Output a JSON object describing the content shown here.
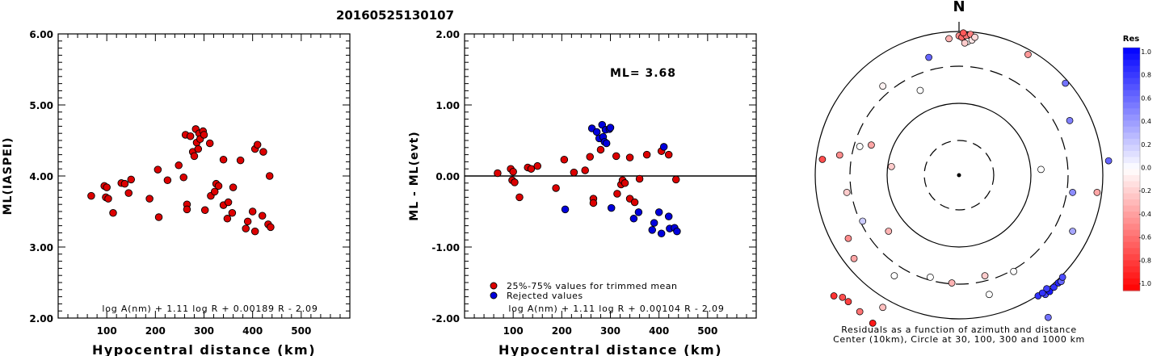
{
  "page_title": "20160525130107",
  "chart_data": [
    {
      "type": "scatter",
      "ylabel": "ML(IASPEI)",
      "xlabel": "Hypocentral distance (km)",
      "xlim": [
        0,
        600
      ],
      "ylim": [
        2.0,
        6.0
      ],
      "x_ticks": [
        "100",
        "200",
        "300",
        "400",
        "500"
      ],
      "y_ticks": [
        "2.00",
        "3.00",
        "4.00",
        "5.00",
        "6.00"
      ],
      "formula": "log A(nm) + 1.11 log R + 0.00189 R - 2.09",
      "series": [
        {
          "color": "#dd0000",
          "points": [
            [
              68,
              3.72
            ],
            [
              95,
              3.86
            ],
            [
              100,
              3.84
            ],
            [
              98,
              3.7
            ],
            [
              103,
              3.68
            ],
            [
              113,
              3.48
            ],
            [
              130,
              3.9
            ],
            [
              137,
              3.89
            ],
            [
              145,
              3.76
            ],
            [
              150,
              3.95
            ],
            [
              188,
              3.68
            ],
            [
              205,
              4.09
            ],
            [
              207,
              3.42
            ],
            [
              225,
              3.94
            ],
            [
              248,
              4.15
            ],
            [
              258,
              3.98
            ],
            [
              262,
              4.58
            ],
            [
              265,
              3.6
            ],
            [
              265,
              3.53
            ],
            [
              272,
              4.56
            ],
            [
              277,
              4.34
            ],
            [
              280,
              4.28
            ],
            [
              283,
              4.66
            ],
            [
              285,
              4.47
            ],
            [
              288,
              4.38
            ],
            [
              290,
              4.6
            ],
            [
              292,
              4.52
            ],
            [
              298,
              4.63
            ],
            [
              300,
              4.58
            ],
            [
              302,
              3.52
            ],
            [
              312,
              4.46
            ],
            [
              314,
              3.72
            ],
            [
              322,
              3.78
            ],
            [
              325,
              3.89
            ],
            [
              330,
              3.86
            ],
            [
              340,
              3.59
            ],
            [
              340,
              4.23
            ],
            [
              348,
              3.4
            ],
            [
              350,
              3.63
            ],
            [
              358,
              3.48
            ],
            [
              360,
              3.84
            ],
            [
              375,
              4.22
            ],
            [
              386,
              3.26
            ],
            [
              390,
              3.36
            ],
            [
              400,
              3.5
            ],
            [
              405,
              4.38
            ],
            [
              405,
              3.22
            ],
            [
              410,
              4.44
            ],
            [
              420,
              3.44
            ],
            [
              422,
              4.34
            ],
            [
              432,
              3.32
            ],
            [
              435,
              4.0
            ],
            [
              437,
              3.28
            ]
          ]
        }
      ]
    },
    {
      "type": "scatter",
      "ylabel": "ML - ML(evt)",
      "xlabel": "Hypocentral distance (km)",
      "xlim": [
        0,
        600
      ],
      "ylim": [
        -2.0,
        2.0
      ],
      "x_ticks": [
        "100",
        "200",
        "300",
        "400",
        "500"
      ],
      "y_ticks": [
        "-2.00",
        "-1.00",
        "0.00",
        "1.00",
        "2.00"
      ],
      "annotation": "ML= 3.68",
      "formula": "log A(nm) + 1.11 log R + 0.00104 R - 2.09",
      "series": [
        {
          "name": "25%-75% values for trimmed mean",
          "color": "#dd0000",
          "points": [
            [
              68,
              0.04
            ],
            [
              95,
              0.1
            ],
            [
              100,
              0.06
            ],
            [
              98,
              -0.06
            ],
            [
              103,
              -0.09
            ],
            [
              113,
              -0.3
            ],
            [
              130,
              0.12
            ],
            [
              137,
              0.1
            ],
            [
              150,
              0.14
            ],
            [
              188,
              -0.17
            ],
            [
              205,
              0.23
            ],
            [
              225,
              0.05
            ],
            [
              248,
              0.08
            ],
            [
              258,
              0.27
            ],
            [
              265,
              -0.32
            ],
            [
              265,
              -0.38
            ],
            [
              280,
              0.37
            ],
            [
              312,
              0.28
            ],
            [
              314,
              -0.25
            ],
            [
              322,
              -0.12
            ],
            [
              325,
              -0.06
            ],
            [
              330,
              -0.1
            ],
            [
              340,
              -0.32
            ],
            [
              340,
              0.26
            ],
            [
              350,
              -0.37
            ],
            [
              360,
              -0.04
            ],
            [
              375,
              0.3
            ],
            [
              405,
              0.35
            ],
            [
              420,
              0.3
            ],
            [
              435,
              -0.05
            ]
          ]
        },
        {
          "name": "Rejected values",
          "color": "#0000dd",
          "points": [
            [
              207,
              -0.47
            ],
            [
              262,
              0.67
            ],
            [
              272,
              0.62
            ],
            [
              277,
              0.53
            ],
            [
              283,
              0.72
            ],
            [
              285,
              0.55
            ],
            [
              288,
              0.48
            ],
            [
              290,
              0.65
            ],
            [
              292,
              0.46
            ],
            [
              298,
              0.66
            ],
            [
              300,
              0.68
            ],
            [
              302,
              -0.45
            ],
            [
              348,
              -0.6
            ],
            [
              358,
              -0.51
            ],
            [
              386,
              -0.76
            ],
            [
              390,
              -0.66
            ],
            [
              400,
              -0.51
            ],
            [
              405,
              -0.81
            ],
            [
              410,
              0.41
            ],
            [
              420,
              -0.57
            ],
            [
              422,
              -0.74
            ],
            [
              432,
              -0.73
            ],
            [
              437,
              -0.78
            ]
          ]
        }
      ]
    }
  ],
  "residual_map": {
    "north_label": "N",
    "caption_line1": "Residuals as a function of azimuth and distance",
    "caption_line2": "Center (10km), Circle at 30, 100, 300 and 1000 km",
    "colorbar": {
      "title": "Res",
      "labels": [
        "1.0",
        "0.8",
        "0.6",
        "0.4",
        "0.2",
        "0.0",
        "-0.2",
        "-0.4",
        "-0.6",
        "-0.8",
        "-1.0"
      ]
    },
    "stations": [
      [
        0.0,
        0.97,
        -0.45
      ],
      [
        0.02,
        0.96,
        -0.6
      ],
      [
        0.05,
        0.97,
        -0.55
      ],
      [
        0.08,
        0.98,
        -0.5
      ],
      [
        0.03,
        0.99,
        -0.65
      ],
      [
        0.06,
        0.93,
        0.0
      ],
      [
        0.09,
        0.94,
        -0.1
      ],
      [
        0.04,
        0.92,
        -0.2
      ],
      [
        -0.07,
        0.95,
        -0.3
      ],
      [
        0.11,
        0.96,
        -0.15
      ],
      [
        -0.21,
        0.82,
        0.6
      ],
      [
        0.48,
        0.84,
        -0.4
      ],
      [
        -0.53,
        0.62,
        -0.05
      ],
      [
        -0.27,
        0.59,
        0.0
      ],
      [
        0.74,
        0.64,
        0.55
      ],
      [
        0.77,
        0.38,
        0.5
      ],
      [
        -0.69,
        0.2,
        0.0
      ],
      [
        -0.83,
        0.14,
        -0.45
      ],
      [
        -0.47,
        0.06,
        -0.2
      ],
      [
        -0.61,
        0.21,
        -0.35
      ],
      [
        -0.95,
        0.11,
        -0.7
      ],
      [
        1.04,
        0.1,
        0.6
      ],
      [
        0.57,
        0.04,
        0.0
      ],
      [
        -0.78,
        -0.12,
        -0.2
      ],
      [
        0.79,
        -0.12,
        0.45
      ],
      [
        0.96,
        -0.12,
        -0.35
      ],
      [
        -0.67,
        -0.32,
        0.2
      ],
      [
        -0.49,
        -0.39,
        -0.3
      ],
      [
        -0.77,
        -0.44,
        -0.45
      ],
      [
        -0.73,
        -0.58,
        -0.35
      ],
      [
        -0.45,
        -0.7,
        0.0
      ],
      [
        0.79,
        -0.39,
        0.35
      ],
      [
        -0.2,
        -0.71,
        0.0
      ],
      [
        -0.05,
        -0.75,
        -0.3
      ],
      [
        0.21,
        -0.83,
        0.0
      ],
      [
        0.18,
        -0.7,
        -0.2
      ],
      [
        0.38,
        -0.67,
        0.0
      ],
      [
        -0.53,
        -0.92,
        -0.25
      ],
      [
        -0.87,
        -0.84,
        -0.8
      ],
      [
        -0.81,
        -0.85,
        -0.7
      ],
      [
        -0.77,
        -0.88,
        -0.75
      ],
      [
        -0.69,
        -0.95,
        -0.55
      ],
      [
        -0.6,
        -1.03,
        -0.9
      ],
      [
        0.55,
        -0.84,
        0.8
      ],
      [
        0.6,
        -0.83,
        0.7
      ],
      [
        0.63,
        -0.81,
        0.9
      ],
      [
        0.66,
        -0.78,
        0.8
      ],
      [
        0.69,
        -0.75,
        0.85
      ],
      [
        0.71,
        -0.74,
        0.6
      ],
      [
        0.72,
        -0.71,
        0.7
      ],
      [
        0.61,
        -0.79,
        0.75
      ],
      [
        0.58,
        -0.82,
        0.8
      ],
      [
        0.62,
        -0.99,
        0.55
      ]
    ]
  }
}
